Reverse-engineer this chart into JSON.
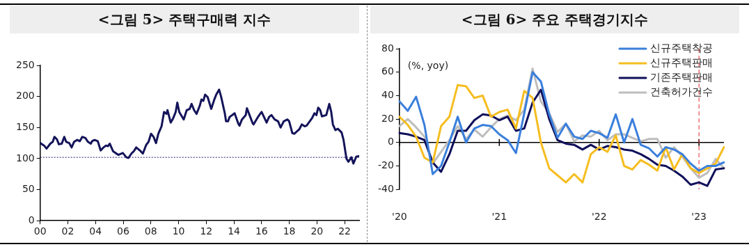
{
  "chart_data": [
    {
      "type": "line",
      "title": "<그림 5> 주택구매력 지수",
      "xlim": [
        2000,
        2023.05
      ],
      "ylim": [
        0,
        250
      ],
      "xticks": [
        {
          "value": 2000,
          "label": "00"
        },
        {
          "value": 2002,
          "label": "02"
        },
        {
          "value": 2004,
          "label": "04"
        },
        {
          "value": 2006,
          "label": "06"
        },
        {
          "value": 2008,
          "label": "08"
        },
        {
          "value": 2010,
          "label": "10"
        },
        {
          "value": 2012,
          "label": "12"
        },
        {
          "value": 2014,
          "label": "14"
        },
        {
          "value": 2016,
          "label": "16"
        },
        {
          "value": 2018,
          "label": "18"
        },
        {
          "value": 2020,
          "label": "20"
        },
        {
          "value": 2022,
          "label": "22"
        }
      ],
      "yticks": [
        0,
        50,
        100,
        150,
        200,
        250
      ],
      "grid": false,
      "legend": false,
      "marker": "none",
      "line_style": "solid",
      "ref_lines": [
        {
          "axis": "y",
          "value": 102,
          "color": "#1a1a6e",
          "line_style": "dotted"
        }
      ],
      "series": [
        {
          "color": "#14145a",
          "x": [
            2000.0,
            2000.28,
            2000.46,
            2000.73,
            2000.91,
            2001.03,
            2001.21,
            2001.35,
            2001.56,
            2001.74,
            2001.88,
            2002.1,
            2002.27,
            2002.45,
            2002.68,
            2002.86,
            2003.04,
            2003.27,
            2003.45,
            2003.66,
            2003.75,
            2003.93,
            2004.16,
            2004.37,
            2004.58,
            2004.76,
            2004.9,
            2005.03,
            2005.26,
            2005.44,
            2005.65,
            2005.97,
            2006.23,
            2006.38,
            2006.59,
            2006.77,
            2006.94,
            2007.21,
            2007.42,
            2007.66,
            2007.83,
            2008.01,
            2008.19,
            2008.37,
            2008.54,
            2008.77,
            2008.95,
            2009.13,
            2009.2,
            2009.43,
            2009.61,
            2009.79,
            2009.91,
            2010.05,
            2010.37,
            2010.59,
            2010.8,
            2010.94,
            2011.12,
            2011.3,
            2011.53,
            2011.65,
            2011.79,
            2011.92,
            2012.1,
            2012.36,
            2012.58,
            2012.72,
            2012.93,
            2013.07,
            2013.34,
            2013.43,
            2013.57,
            2013.69,
            2013.87,
            2014.05,
            2014.32,
            2014.4,
            2014.58,
            2014.85,
            2014.94,
            2015.06,
            2015.35,
            2015.42,
            2015.74,
            2015.83,
            2016.0,
            2016.36,
            2016.54,
            2016.71,
            2016.94,
            2017.19,
            2017.37,
            2017.6,
            2017.87,
            2017.99,
            2018.22,
            2018.37,
            2018.61,
            2018.72,
            2018.9,
            2019.11,
            2019.25,
            2019.64,
            2019.82,
            2019.96,
            2020.09,
            2020.23,
            2020.36,
            2020.67,
            2020.89,
            2021.03,
            2021.15,
            2021.33,
            2021.51,
            2021.6,
            2021.78,
            2021.92,
            2022.13,
            2022.27,
            2022.49,
            2022.63,
            2022.84,
            2023.02
          ],
          "values": [
            125,
            121,
            116,
            124,
            127,
            135,
            131,
            123,
            124,
            135,
            127,
            125,
            118,
            127,
            130,
            128,
            135,
            133,
            127,
            124,
            128,
            130,
            128,
            113,
            118,
            121,
            120,
            124,
            112,
            109,
            106,
            109,
            102,
            101,
            108,
            112,
            118,
            113,
            108,
            122,
            127,
            140,
            135,
            125,
            140,
            152,
            175,
            172,
            178,
            158,
            165,
            175,
            190,
            175,
            163,
            178,
            180,
            188,
            178,
            172,
            185,
            195,
            193,
            203,
            199,
            180,
            195,
            203,
            211,
            200,
            173,
            160,
            160,
            167,
            170,
            173,
            156,
            153,
            163,
            170,
            181,
            174,
            157,
            155,
            167,
            170,
            175,
            158,
            167,
            170,
            163,
            160,
            150,
            160,
            163,
            160,
            141,
            140,
            145,
            147,
            155,
            152,
            153,
            165,
            173,
            170,
            182,
            178,
            168,
            170,
            188,
            175,
            155,
            146,
            148,
            146,
            142,
            130,
            100,
            95,
            102,
            92,
            103,
            104
          ]
        }
      ]
    },
    {
      "type": "line",
      "title": "<그림 6> 주요 주택경기지수",
      "annotations": [
        "(%, yoy)"
      ],
      "categories": [
        "'20",
        null,
        null,
        null,
        null,
        null,
        null,
        null,
        null,
        null,
        null,
        null,
        "'21",
        null,
        null,
        null,
        null,
        null,
        null,
        null,
        null,
        null,
        null,
        null,
        "'22",
        null,
        null,
        null,
        null,
        null,
        null,
        null,
        null,
        null,
        null,
        null,
        "'23",
        null,
        null,
        null
      ],
      "ylim": [
        -40,
        80
      ],
      "yticks": [
        -40,
        -20,
        0,
        20,
        40,
        60,
        80
      ],
      "grid": false,
      "legend": "top right",
      "marker": "none",
      "line_style": "solid",
      "ref_lines": [
        {
          "axis": "x",
          "value": "'23",
          "color": "#e03030",
          "line_style": "dashed"
        }
      ],
      "series": [
        {
          "name": "신규주택착공",
          "color": "#3a7fdc",
          "values": [
            35,
            27,
            39,
            15,
            -27,
            -20,
            0,
            22,
            0,
            12,
            15,
            14,
            7,
            2,
            -9,
            25,
            60,
            52,
            24,
            4,
            16,
            5,
            3,
            10,
            8,
            4,
            24,
            0,
            20,
            -2,
            -5,
            -12,
            -4,
            -6,
            -10,
            -18,
            -24,
            -20,
            -20,
            -17
          ]
        },
        {
          "name": "신규주택판매",
          "color": "#f5bd1f",
          "values": [
            22,
            15,
            5,
            -13,
            -17,
            14,
            22,
            49,
            48,
            38,
            40,
            22,
            26,
            28,
            12,
            44,
            38,
            0,
            -22,
            -28,
            -34,
            -27,
            -34,
            -10,
            -4,
            -8,
            6,
            -20,
            -23,
            -15,
            -19,
            -24,
            -4,
            -23,
            -10,
            -22,
            -26,
            -22,
            -18,
            -4
          ]
        },
        {
          "name": "기존주택판매",
          "color": "#0f0f5a",
          "values": [
            8,
            7,
            5,
            2,
            -17,
            -25,
            -10,
            10,
            10,
            19,
            24,
            23,
            19,
            22,
            10,
            12,
            34,
            45,
            20,
            2,
            -1,
            -2,
            -6,
            -2,
            -6,
            -3,
            -4,
            -6,
            -7,
            -10,
            -14,
            -19,
            -20,
            -24,
            -29,
            -36,
            -34,
            -37,
            -23,
            -22
          ]
        },
        {
          "name": "건축허가건수",
          "color": "#bdbdbd",
          "values": [
            14,
            20,
            13,
            5,
            -18,
            -8,
            2,
            14,
            3,
            11,
            5,
            13,
            20,
            23,
            19,
            28,
            63,
            35,
            25,
            9,
            16,
            1,
            6,
            5,
            10,
            2,
            7,
            7,
            4,
            1,
            3,
            3,
            -13,
            -4,
            -12,
            -22,
            -30,
            -26,
            -14,
            -22
          ]
        }
      ]
    }
  ]
}
